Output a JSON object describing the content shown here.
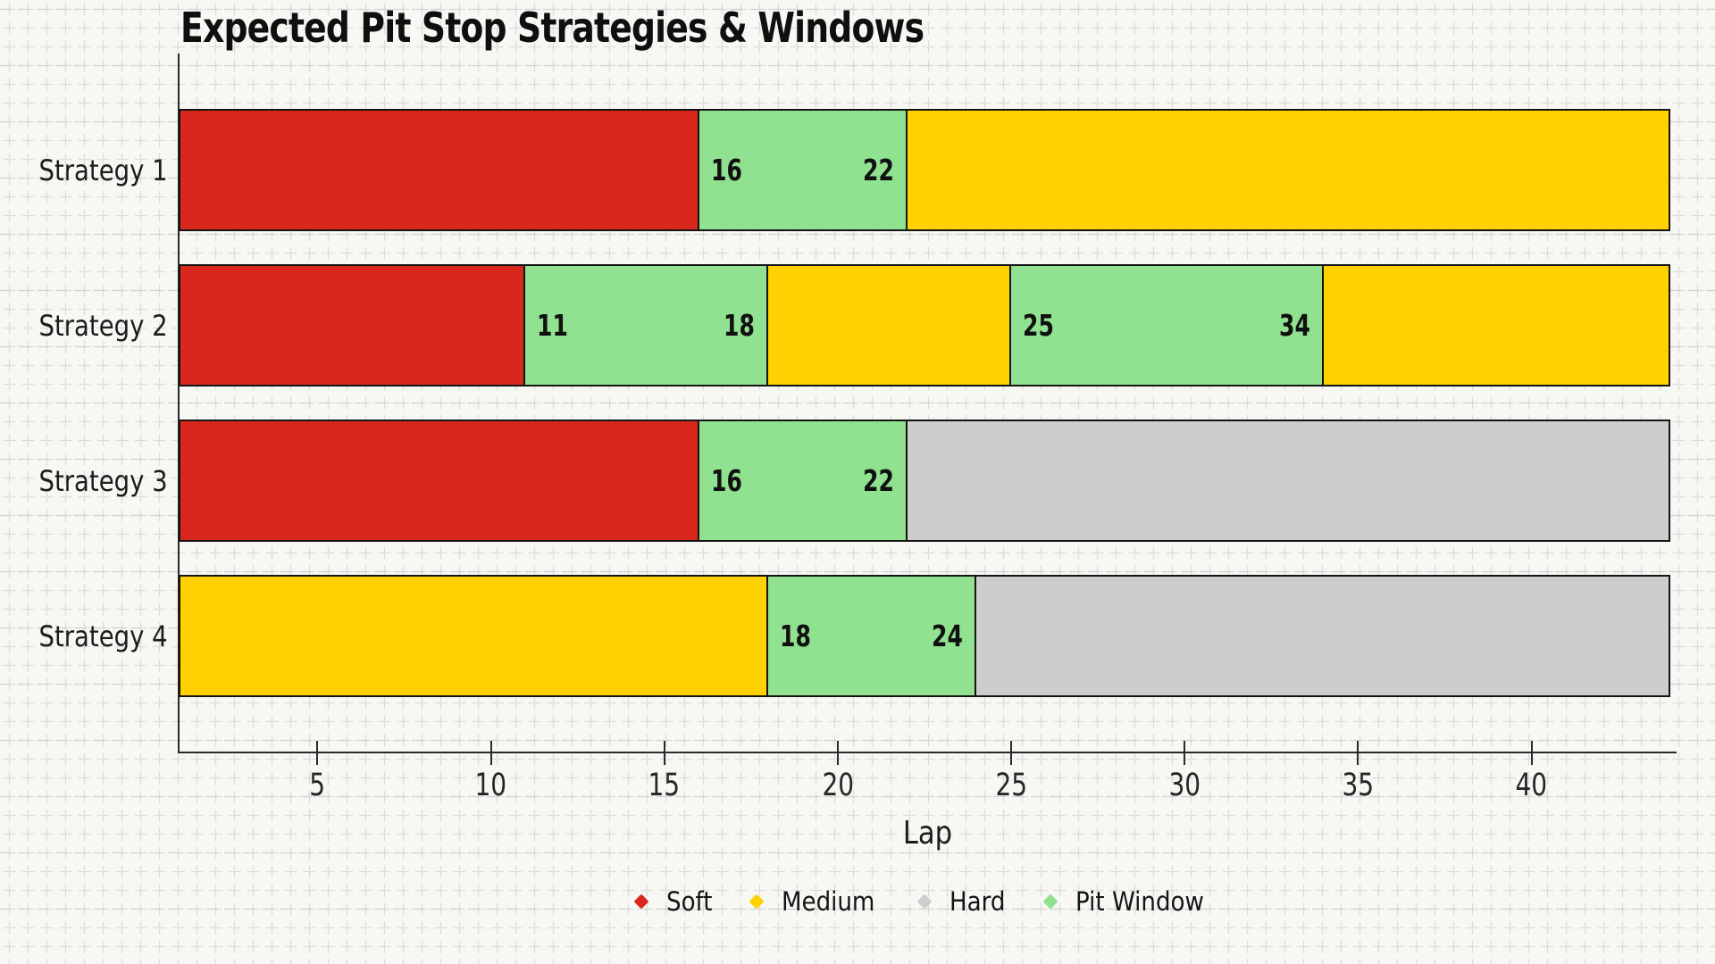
{
  "title": "Expected Pit Stop Strategies & Windows",
  "colors": {
    "background": "#f7f7f4",
    "grid": "#dcdcdc",
    "grid_major": "#d2d2d2",
    "axis": "#2a2a2a",
    "segment_border": "#141414",
    "text": "#1c1c1c",
    "soft": "#d8281d",
    "medium": "#ffd100",
    "hard": "#cdcdcd",
    "pit_window": "#90e290"
  },
  "chart_data": {
    "type": "bar",
    "orientation": "horizontal-stacked",
    "title": "Expected Pit Stop Strategies & Windows",
    "xlabel": "Lap",
    "ylabel": "",
    "xlim": [
      1,
      44
    ],
    "xticks": [
      5,
      10,
      15,
      20,
      25,
      30,
      35,
      40
    ],
    "grid": "graph-paper background, no in-plot gridlines",
    "legend_position": "bottom-center",
    "categories": [
      "Strategy 1",
      "Strategy 2",
      "Strategy 3",
      "Strategy 4"
    ],
    "series_colors": {
      "Soft": "#d8281d",
      "Medium": "#ffd100",
      "Hard": "#cdcdcd",
      "Pit Window": "#90e290"
    },
    "strategies": [
      {
        "name": "Strategy 1",
        "segments": [
          {
            "type": "Soft",
            "start": 1,
            "end": 16
          },
          {
            "type": "Pit Window",
            "start": 16,
            "end": 22,
            "labels": [
              "16",
              "22"
            ]
          },
          {
            "type": "Medium",
            "start": 22,
            "end": 44
          }
        ]
      },
      {
        "name": "Strategy 2",
        "segments": [
          {
            "type": "Soft",
            "start": 1,
            "end": 11
          },
          {
            "type": "Pit Window",
            "start": 11,
            "end": 18,
            "labels": [
              "11",
              "18"
            ]
          },
          {
            "type": "Medium",
            "start": 18,
            "end": 25
          },
          {
            "type": "Pit Window",
            "start": 25,
            "end": 34,
            "labels": [
              "25",
              "34"
            ]
          },
          {
            "type": "Medium",
            "start": 34,
            "end": 44
          }
        ]
      },
      {
        "name": "Strategy 3",
        "segments": [
          {
            "type": "Soft",
            "start": 1,
            "end": 16
          },
          {
            "type": "Pit Window",
            "start": 16,
            "end": 22,
            "labels": [
              "16",
              "22"
            ]
          },
          {
            "type": "Hard",
            "start": 22,
            "end": 44
          }
        ]
      },
      {
        "name": "Strategy 4",
        "segments": [
          {
            "type": "Medium",
            "start": 1,
            "end": 18
          },
          {
            "type": "Pit Window",
            "start": 18,
            "end": 24,
            "labels": [
              "18",
              "24"
            ]
          },
          {
            "type": "Hard",
            "start": 24,
            "end": 44
          }
        ]
      }
    ],
    "legend": [
      {
        "label": "Soft",
        "color": "#d8281d"
      },
      {
        "label": "Medium",
        "color": "#ffd100"
      },
      {
        "label": "Hard",
        "color": "#cdcdcd"
      },
      {
        "label": "Pit Window",
        "color": "#90e290"
      }
    ]
  }
}
